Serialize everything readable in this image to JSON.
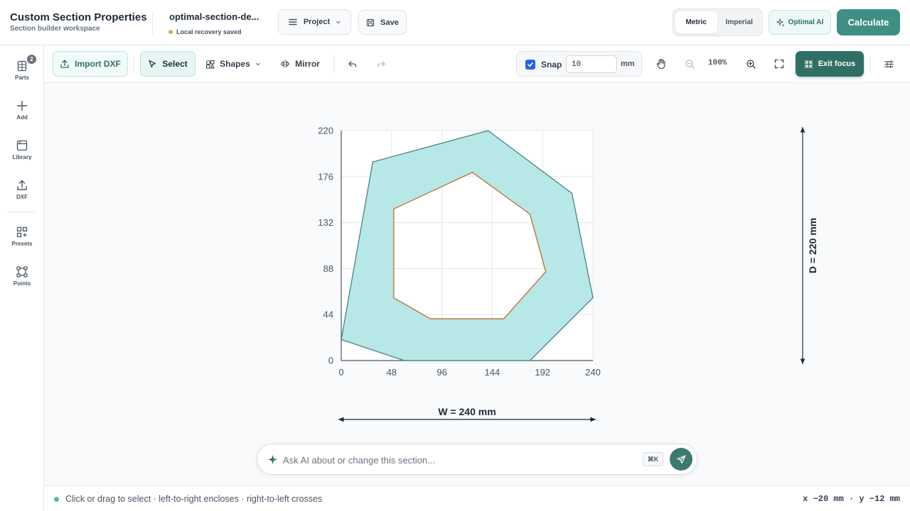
{
  "header": {
    "title": "Custom Section Properties",
    "subtitle": "Section builder workspace",
    "file_name": "optimal-section-de...",
    "recovery_status": "Local recovery saved",
    "project_label": "Project",
    "save_label": "Save",
    "units": {
      "options": [
        "Metric",
        "Imperial"
      ],
      "selected": "Metric"
    },
    "ai_label": "Optimal AI",
    "calculate_label": "Calculate"
  },
  "sidebar": {
    "items": [
      {
        "label": "Parts",
        "icon": "parts-icon",
        "badge": "2"
      },
      {
        "label": "Add",
        "icon": "plus-icon"
      },
      {
        "label": "Library",
        "icon": "library-icon"
      },
      {
        "label": "DXF",
        "icon": "upload-icon"
      },
      {
        "label": "Presets",
        "icon": "presets-icon"
      },
      {
        "label": "Points",
        "icon": "points-icon"
      }
    ]
  },
  "toolbar": {
    "import_label": "Import DXF",
    "select_label": "Select",
    "shapes_label": "Shapes",
    "mirror_label": "Mirror",
    "snap_label": "Snap",
    "snap_enabled": true,
    "snap_value": "10",
    "snap_unit": "mm",
    "zoom": "100%",
    "exit_focus_label": "Exit focus"
  },
  "canvas": {
    "x_ticks": [
      "0",
      "48",
      "96",
      "144",
      "192",
      "240"
    ],
    "y_ticks": [
      "0",
      "44",
      "88",
      "132",
      "176",
      "220"
    ],
    "width_dim": "W = 240 mm",
    "depth_dim": "D = 220 mm",
    "outer_polygon": [
      [
        0,
        20
      ],
      [
        30,
        190
      ],
      [
        140,
        220
      ],
      [
        220,
        160
      ],
      [
        240,
        60
      ],
      [
        180,
        0
      ],
      [
        60,
        0
      ]
    ],
    "inner_polygon": [
      [
        50,
        145
      ],
      [
        125,
        180
      ],
      [
        180,
        140
      ],
      [
        195,
        85
      ],
      [
        155,
        40
      ],
      [
        85,
        40
      ],
      [
        50,
        60
      ]
    ],
    "fill_color": "#b7e7e7",
    "outer_stroke": "#3d7c78",
    "inner_stroke": "#b5651d"
  },
  "chart_data": {
    "type": "scatter",
    "xlim": [
      0,
      240
    ],
    "ylim": [
      0,
      220
    ],
    "grid": true,
    "series": [
      {
        "name": "",
        "x": [
          0,
          30,
          140,
          220,
          240,
          180,
          60
        ],
        "y": [
          20,
          190,
          220,
          160,
          60,
          0,
          0
        ]
      },
      {
        "name": "",
        "x": [
          50,
          125,
          180,
          195,
          155,
          85,
          50
        ],
        "y": [
          145,
          180,
          140,
          85,
          40,
          40,
          60
        ]
      }
    ]
  },
  "ask": {
    "placeholder": "Ask AI about or change this section...",
    "shortcut": "⌘K"
  },
  "status": {
    "hint": "Click or drag to select · left-to-right encloses · right-to-left crosses",
    "coords": "x −20 mm · y −12 mm"
  }
}
